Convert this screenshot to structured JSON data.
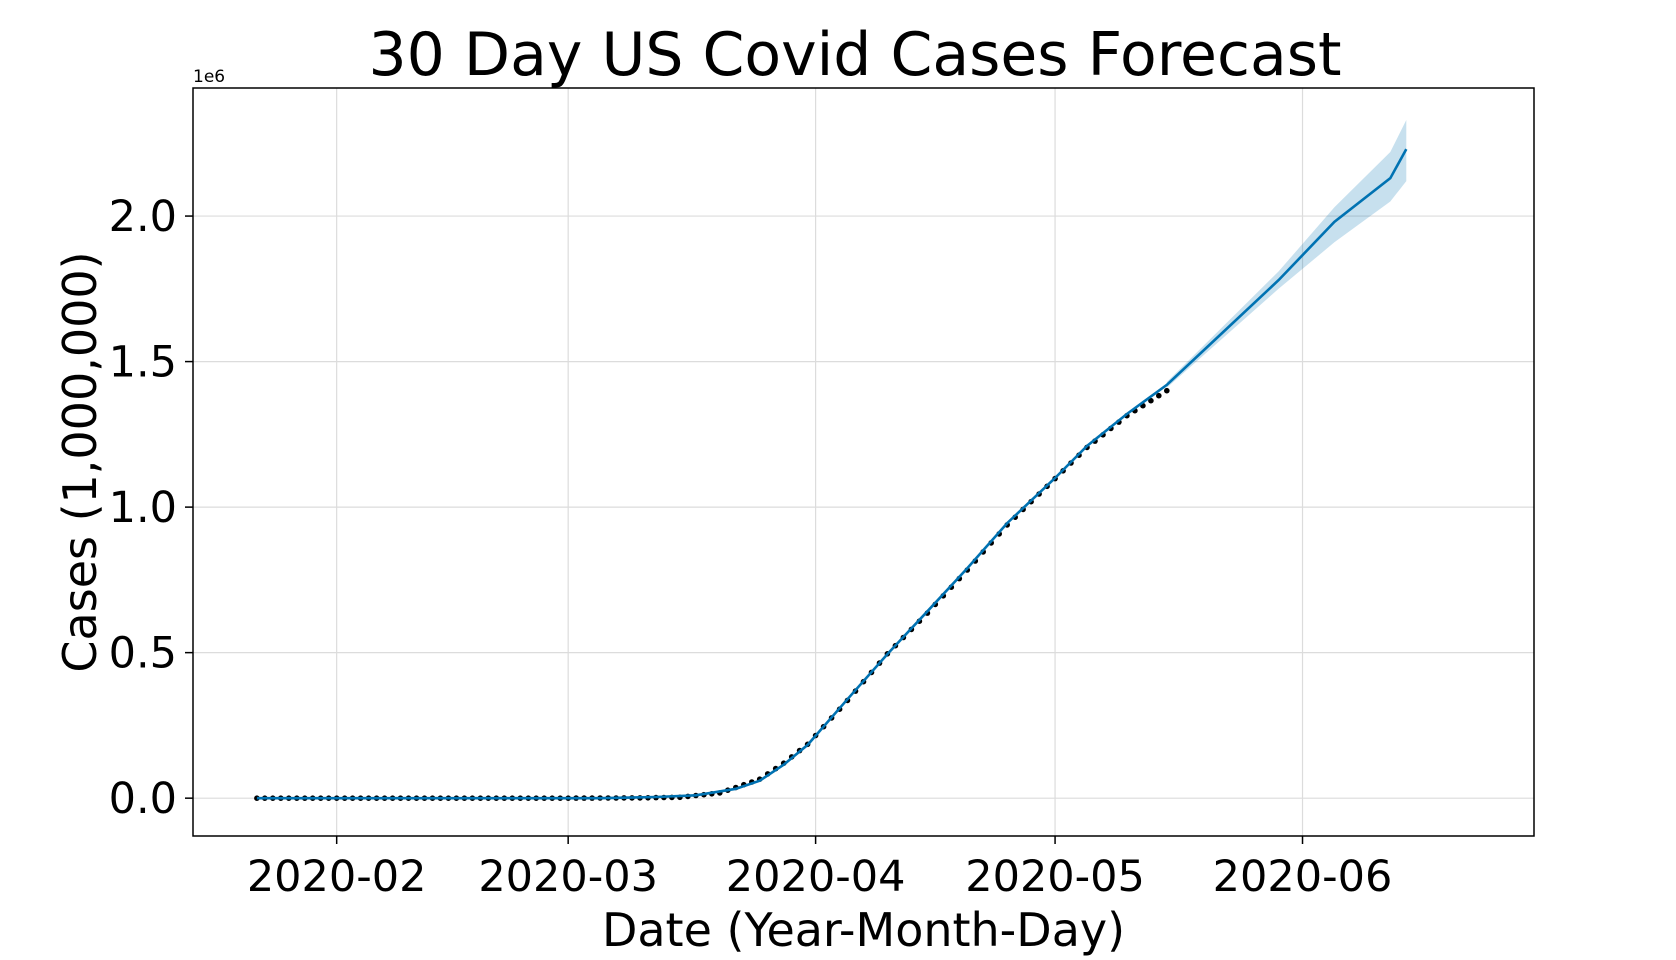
{
  "chart_data": {
    "type": "line",
    "title": "30 Day US Covid Cases Forecast",
    "xlabel": "Date (Year-Month-Day)",
    "ylabel": "Cases (1,000,000)",
    "y_multiplier_label": "1e6",
    "x_range": [
      "2020-01-14",
      "2020-06-30"
    ],
    "ylim": [
      -0.13,
      2.44
    ],
    "grid": true,
    "x_ticks": [
      {
        "date": "2020-02-01",
        "label": "2020-02"
      },
      {
        "date": "2020-03-01",
        "label": "2020-03"
      },
      {
        "date": "2020-04-01",
        "label": "2020-04"
      },
      {
        "date": "2020-05-01",
        "label": "2020-05"
      },
      {
        "date": "2020-06-01",
        "label": "2020-06"
      }
    ],
    "y_ticks": [
      {
        "value": 0.0,
        "label": "0.0"
      },
      {
        "value": 0.5,
        "label": "0.5"
      },
      {
        "value": 1.0,
        "label": "1.0"
      },
      {
        "value": 1.5,
        "label": "1.5"
      },
      {
        "value": 2.0,
        "label": "2.0"
      }
    ],
    "colors": {
      "forecast_line": "#0072B2",
      "uncertainty_band": "#0072B2",
      "observed_points": "#000000"
    },
    "observed": {
      "start_date": "2020-01-22",
      "end_date": "2020-05-15",
      "knots": [
        [
          "2020-01-22",
          0.0
        ],
        [
          "2020-02-15",
          0.0
        ],
        [
          "2020-03-01",
          0.0
        ],
        [
          "2020-03-10",
          0.001
        ],
        [
          "2020-03-15",
          0.003
        ],
        [
          "2020-03-20",
          0.018
        ],
        [
          "2020-03-25",
          0.065
        ],
        [
          "2020-03-28",
          0.12
        ],
        [
          "2020-03-31",
          0.185
        ],
        [
          "2020-04-05",
          0.336
        ],
        [
          "2020-04-10",
          0.496
        ],
        [
          "2020-04-15",
          0.636
        ],
        [
          "2020-04-20",
          0.784
        ],
        [
          "2020-04-25",
          0.939
        ],
        [
          "2020-05-01",
          1.098
        ],
        [
          "2020-05-05",
          1.205
        ],
        [
          "2020-05-10",
          1.314
        ],
        [
          "2020-05-15",
          1.4
        ]
      ]
    },
    "forecast": {
      "yhat": [
        [
          "2020-01-22",
          0.0
        ],
        [
          "2020-03-05",
          0.0
        ],
        [
          "2020-03-12",
          0.004
        ],
        [
          "2020-03-17",
          0.01
        ],
        [
          "2020-03-22",
          0.032
        ],
        [
          "2020-03-25",
          0.06
        ],
        [
          "2020-03-28",
          0.115
        ],
        [
          "2020-03-31",
          0.183
        ],
        [
          "2020-04-05",
          0.34
        ],
        [
          "2020-04-10",
          0.495
        ],
        [
          "2020-04-15",
          0.642
        ],
        [
          "2020-04-20",
          0.79
        ],
        [
          "2020-04-25",
          0.945
        ],
        [
          "2020-05-01",
          1.1
        ],
        [
          "2020-05-05",
          1.21
        ],
        [
          "2020-05-10",
          1.32
        ],
        [
          "2020-05-15",
          1.42
        ],
        [
          "2020-05-22",
          1.6
        ],
        [
          "2020-05-29",
          1.78
        ],
        [
          "2020-06-05",
          1.98
        ],
        [
          "2020-06-12",
          2.13
        ],
        [
          "2020-06-14",
          2.23
        ]
      ],
      "yhat_lower": [
        [
          "2020-05-15",
          1.41
        ],
        [
          "2020-05-22",
          1.58
        ],
        [
          "2020-05-29",
          1.75
        ],
        [
          "2020-06-05",
          1.91
        ],
        [
          "2020-06-12",
          2.05
        ],
        [
          "2020-06-14",
          2.12
        ]
      ],
      "yhat_upper": [
        [
          "2020-05-15",
          1.43
        ],
        [
          "2020-05-22",
          1.62
        ],
        [
          "2020-05-29",
          1.81
        ],
        [
          "2020-06-05",
          2.03
        ],
        [
          "2020-06-12",
          2.22
        ],
        [
          "2020-06-14",
          2.33
        ]
      ]
    }
  }
}
